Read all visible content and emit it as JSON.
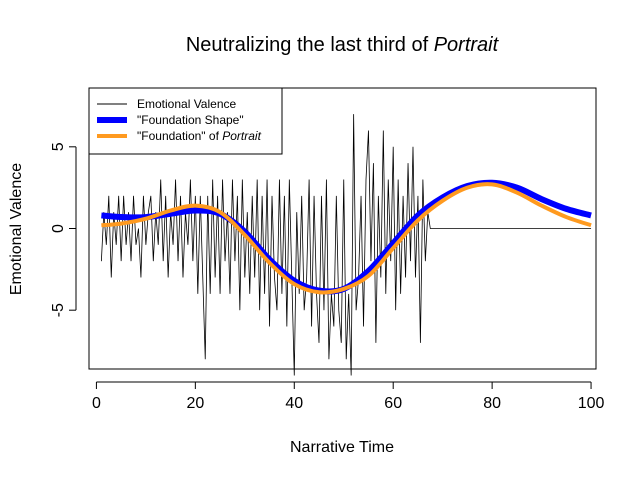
{
  "chart_data": {
    "type": "line",
    "title": "Neutralizing the last third of ",
    "title_em": "Portrait",
    "xlabel": "Narrative Time",
    "ylabel": "Emotional Valence",
    "xlim": [
      -1.5,
      101
    ],
    "ylim": [
      -8.6,
      8.6
    ],
    "xticks": [
      0,
      20,
      40,
      60,
      80,
      100
    ],
    "yticks": [
      -5,
      0,
      5
    ],
    "legend": {
      "placement": "top-left",
      "entries": [
        {
          "label": "Emotional Valence",
          "em": "",
          "color": "#000000"
        },
        {
          "label": "\"Foundation Shape\"",
          "em": "",
          "color": "#0000ff"
        },
        {
          "label": "\"Foundation\" of ",
          "em": "Portrait",
          "color": "#ff9a1f"
        }
      ]
    },
    "series": [
      {
        "name": "Emotional Valence",
        "color": "#000000",
        "x": [
          1,
          1.5,
          2,
          2.5,
          3,
          3.5,
          4,
          4.5,
          5,
          5.5,
          6,
          6.5,
          7,
          7.5,
          8,
          8.5,
          9,
          9.5,
          10,
          10.5,
          11,
          11.5,
          12,
          12.5,
          13,
          13.5,
          14,
          14.5,
          15,
          15.5,
          16,
          16.5,
          17,
          17.5,
          18,
          18.5,
          19,
          19.5,
          20,
          20.5,
          21,
          21.5,
          22,
          22.5,
          23,
          23.5,
          24,
          24.5,
          25,
          25.5,
          26,
          26.5,
          27,
          27.5,
          28,
          28.5,
          29,
          29.5,
          30,
          30.5,
          31,
          31.5,
          32,
          32.5,
          33,
          33.5,
          34,
          34.5,
          35,
          35.5,
          36,
          36.5,
          37,
          37.5,
          38,
          38.5,
          39,
          39.5,
          40,
          40.5,
          41,
          41.5,
          42,
          42.5,
          43,
          43.5,
          44,
          44.5,
          45,
          45.5,
          46,
          46.5,
          47,
          47.5,
          48,
          48.5,
          49,
          49.5,
          50,
          50.5,
          51,
          51.5,
          52,
          52.5,
          53,
          53.5,
          54,
          54.5,
          55,
          55.5,
          56,
          56.5,
          57,
          57.5,
          58,
          58.5,
          59,
          59.5,
          60,
          60.5,
          61,
          61.5,
          62,
          62.5,
          63,
          63.5,
          64,
          64.5,
          65,
          65.5,
          66,
          66.5,
          67,
          67.5,
          70,
          80,
          90,
          100
        ],
        "y": [
          -2,
          1,
          -1,
          2,
          -3,
          1,
          -1,
          2,
          -2,
          2,
          -1,
          1,
          -2,
          2,
          -1,
          0,
          -3,
          2,
          -1,
          1,
          2,
          -2,
          1,
          -1,
          3,
          -2,
          2,
          -3,
          1,
          -1,
          3,
          -2,
          2,
          -3,
          1,
          -1,
          3,
          -2,
          2,
          -4,
          2,
          -3,
          -8,
          2,
          -4,
          3,
          -3,
          2,
          -4,
          3,
          -2,
          1,
          -4,
          3,
          -2,
          2,
          -5,
          3,
          -3,
          1,
          -4,
          2,
          -3,
          3,
          -5,
          2,
          -4,
          3,
          -6,
          2,
          -3,
          -5,
          3,
          -4,
          2,
          -6,
          3,
          -3,
          -9,
          1,
          -4,
          2,
          -5,
          -3,
          3,
          -6,
          2,
          -4,
          -7,
          2,
          -5,
          3,
          -8,
          -4,
          -6,
          2,
          -5,
          -7,
          3,
          -8,
          -4,
          -9,
          7,
          -5,
          -3,
          2,
          -6,
          3,
          6,
          -2,
          4,
          -7,
          2,
          -3,
          6,
          -4,
          3,
          -2,
          5,
          -5,
          3,
          -4,
          2,
          -3,
          4,
          -2,
          5,
          -3,
          2,
          -7,
          3,
          -2,
          1,
          0,
          0,
          0,
          0,
          0
        ]
      },
      {
        "name": "\"Foundation Shape\"",
        "color": "#0000ff",
        "x": [
          1,
          5,
          10,
          15,
          20,
          25,
          30,
          35,
          40,
          45,
          50,
          55,
          60,
          65,
          70,
          75,
          80,
          85,
          90,
          95,
          100
        ],
        "y": [
          0.8,
          0.7,
          0.7,
          0.9,
          1.1,
          0.9,
          -0.2,
          -1.9,
          -3.2,
          -3.8,
          -3.7,
          -2.6,
          -0.9,
          0.8,
          1.9,
          2.6,
          2.8,
          2.5,
          1.8,
          1.2,
          0.8
        ]
      },
      {
        "name": "\"Foundation\" of Portrait",
        "color": "#ff9a1f",
        "x": [
          1,
          5,
          10,
          15,
          20,
          25,
          30,
          35,
          40,
          45,
          50,
          55,
          60,
          65,
          70,
          75,
          80,
          85,
          90,
          95,
          100
        ],
        "y": [
          0.2,
          0.3,
          0.6,
          1.1,
          1.4,
          1.0,
          -0.4,
          -2.1,
          -3.4,
          -3.9,
          -3.7,
          -2.9,
          -1.2,
          0.5,
          1.7,
          2.5,
          2.7,
          2.2,
          1.4,
          0.7,
          0.2
        ]
      }
    ]
  }
}
